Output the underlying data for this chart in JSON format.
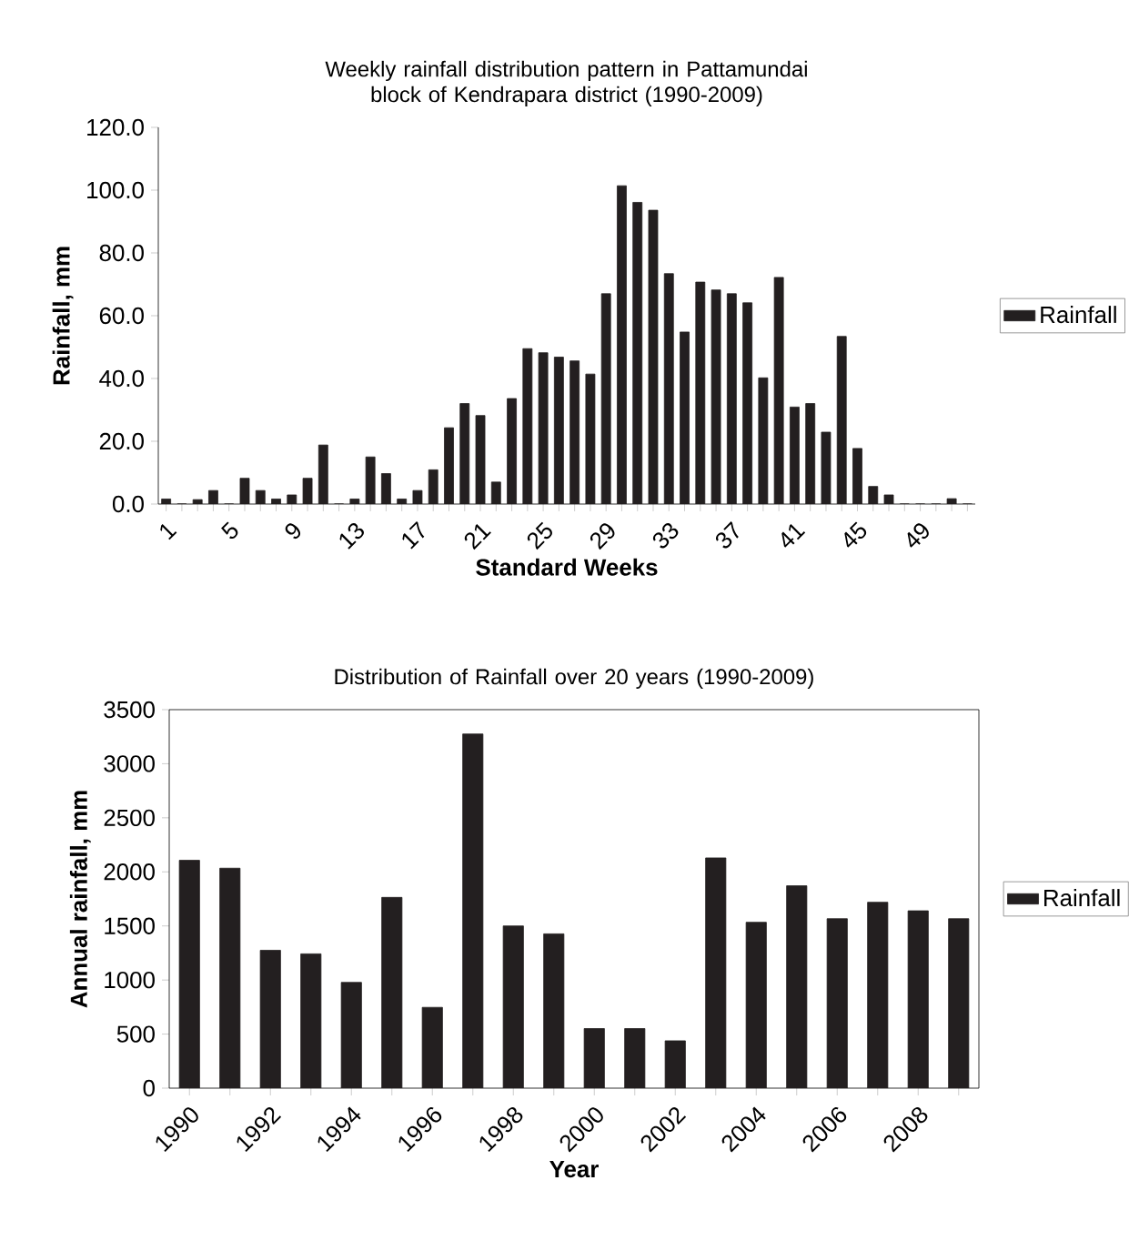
{
  "chart_data": [
    {
      "type": "bar",
      "title": "Weekly rainfall distribution pattern in Pattamundai block of Kendrapara district (1990-2009)",
      "xlabel": "Standard Weeks",
      "ylabel": "Rainfall, mm",
      "categories": [
        "1",
        null,
        null,
        null,
        "5",
        null,
        null,
        null,
        "9",
        null,
        null,
        null,
        "13",
        null,
        null,
        null,
        "17",
        null,
        null,
        null,
        "21",
        null,
        null,
        null,
        "25",
        null,
        null,
        null,
        "29",
        null,
        null,
        null,
        "33",
        null,
        null,
        null,
        "37",
        null,
        null,
        null,
        "41",
        null,
        null,
        null,
        "45",
        null,
        null,
        null,
        "49",
        null,
        null,
        null
      ],
      "series": [
        {
          "name": "Rainfall",
          "color": "#231f20",
          "values": [
            1.6,
            0,
            1.4,
            4.3,
            0,
            8.2,
            4.3,
            1.6,
            2.9,
            8.2,
            18.8,
            0,
            1.6,
            15.0,
            9.7,
            1.6,
            4.3,
            10.9,
            24.3,
            32,
            28.2,
            7.0,
            33.6,
            49.5,
            48.2,
            46.8,
            45.6,
            41.4,
            67,
            101.4,
            96.1,
            93.6,
            73.4,
            54.8,
            70.7,
            68.2,
            67,
            64.1,
            40.2,
            72.2,
            30.9,
            32,
            22.9,
            53.4,
            17.7,
            5.6,
            2.9,
            0,
            0,
            0,
            1.7,
            0
          ]
        }
      ],
      "ylim": [
        0,
        120
      ],
      "yticks": [
        {
          "value": 0,
          "label": "0.0"
        },
        {
          "value": 20,
          "label": "20.0"
        },
        {
          "value": 40,
          "label": "40.0"
        },
        {
          "value": 60,
          "label": "60.0"
        },
        {
          "value": 80,
          "label": "80.0"
        },
        {
          "value": 100,
          "label": "100.0"
        },
        {
          "value": 120,
          "label": "120.0"
        }
      ],
      "legend": "right"
    },
    {
      "type": "bar",
      "title": "Distribution of Rainfall over 20 years (1990-2009)",
      "xlabel": "Year",
      "ylabel": "Annual rainfall, mm",
      "categories": [
        "1990",
        null,
        "1992",
        null,
        "1994",
        null,
        "1996",
        null,
        "1998",
        null,
        "2000",
        null,
        "2002",
        null,
        "2004",
        null,
        "2006",
        null,
        "2008",
        null
      ],
      "series": [
        {
          "name": "Rainfall",
          "color": "#231f20",
          "values": [
            2107,
            2034,
            1275,
            1242,
            978,
            1764,
            747,
            3275,
            1500,
            1427,
            551,
            551,
            438,
            2129,
            1534,
            1871,
            1567,
            1719,
            1640,
            1567
          ]
        }
      ],
      "ylim": [
        0,
        3500
      ],
      "yticks": [
        0,
        500,
        1000,
        1500,
        2000,
        2500,
        3000,
        3500
      ],
      "legend": "right"
    }
  ]
}
